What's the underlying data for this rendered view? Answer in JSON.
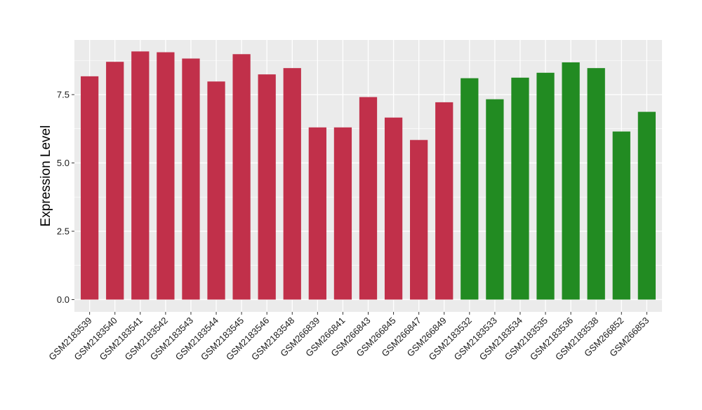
{
  "chart_data": {
    "type": "bar",
    "ylabel": "Expression Level",
    "xlabel": "",
    "ylim": [
      -0.45,
      9.5
    ],
    "yticks": [
      0.0,
      2.5,
      5.0,
      7.5
    ],
    "ytick_labels": [
      "0.0",
      "2.5",
      "5.0",
      "7.5"
    ],
    "grid": true,
    "panel_background": "#ebebeb",
    "grid_color": "#ffffff",
    "categories": [
      "GSM2183539",
      "GSM2183540",
      "GSM2183541",
      "GSM2183542",
      "GSM2183543",
      "GSM2183544",
      "GSM2183545",
      "GSM2183546",
      "GSM2183548",
      "GSM266839",
      "GSM266841",
      "GSM266843",
      "GSM266845",
      "GSM266847",
      "GSM266849",
      "GSM2183532",
      "GSM2183533",
      "GSM2183534",
      "GSM2183535",
      "GSM2183536",
      "GSM2183538",
      "GSM266852",
      "GSM266853"
    ],
    "values": [
      8.17,
      8.7,
      9.08,
      9.05,
      8.82,
      7.98,
      8.98,
      8.24,
      8.47,
      6.3,
      6.3,
      7.41,
      6.66,
      5.84,
      7.22,
      8.1,
      7.33,
      8.12,
      8.3,
      8.68,
      8.47,
      6.15,
      6.87
    ],
    "colors": [
      "#c1304a",
      "#c1304a",
      "#c1304a",
      "#c1304a",
      "#c1304a",
      "#c1304a",
      "#c1304a",
      "#c1304a",
      "#c1304a",
      "#c1304a",
      "#c1304a",
      "#c1304a",
      "#c1304a",
      "#c1304a",
      "#c1304a",
      "#228b22",
      "#228b22",
      "#228b22",
      "#228b22",
      "#228b22",
      "#228b22",
      "#228b22",
      "#228b22"
    ]
  }
}
